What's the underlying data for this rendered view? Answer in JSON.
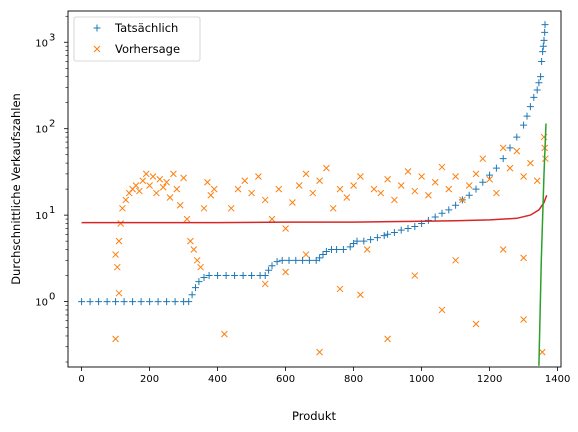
{
  "chart_data": {
    "type": "scatter",
    "xlabel": "Produkt",
    "ylabel": "Durchschnittliche Verkaufszahlen",
    "xlim": [
      -40,
      1410
    ],
    "ylim": [
      0.175,
      2300
    ],
    "yscale": "log",
    "x_ticks": [
      0,
      200,
      400,
      600,
      800,
      1000,
      1200,
      1400
    ],
    "x_tick_labels": [
      "0",
      "200",
      "400",
      "600",
      "800",
      "1000",
      "1200",
      "1400"
    ],
    "y_ticks": [
      1,
      10,
      100,
      1000
    ],
    "y_tick_labels": [
      "10",
      "10",
      "10",
      "10"
    ],
    "y_tick_exponents": [
      "0",
      "1",
      "2",
      "3"
    ],
    "grid": false,
    "legend_position": "top-left",
    "colors": {
      "actual": "#1f77b4",
      "predicted": "#ff7f0e",
      "fit_line": "#d62728",
      "vertical_line": "#2ca02c"
    },
    "series": [
      {
        "name": "Tatsächlich",
        "marker": "+",
        "color": "#1f77b4",
        "points": [
          [
            0,
            1
          ],
          [
            25,
            1
          ],
          [
            50,
            1
          ],
          [
            75,
            1
          ],
          [
            100,
            1
          ],
          [
            125,
            1
          ],
          [
            150,
            1
          ],
          [
            175,
            1
          ],
          [
            200,
            1
          ],
          [
            225,
            1
          ],
          [
            250,
            1
          ],
          [
            275,
            1
          ],
          [
            300,
            1
          ],
          [
            315,
            1
          ],
          [
            325,
            1.2
          ],
          [
            335,
            1.45
          ],
          [
            345,
            1.7
          ],
          [
            360,
            1.9
          ],
          [
            375,
            2
          ],
          [
            400,
            2
          ],
          [
            425,
            2
          ],
          [
            450,
            2
          ],
          [
            475,
            2
          ],
          [
            500,
            2
          ],
          [
            525,
            2
          ],
          [
            540,
            2
          ],
          [
            550,
            2.3
          ],
          [
            560,
            2.6
          ],
          [
            575,
            2.9
          ],
          [
            590,
            3
          ],
          [
            610,
            3
          ],
          [
            630,
            3
          ],
          [
            650,
            3
          ],
          [
            670,
            3
          ],
          [
            690,
            3
          ],
          [
            700,
            3.2
          ],
          [
            710,
            3.5
          ],
          [
            720,
            3.8
          ],
          [
            735,
            4
          ],
          [
            750,
            4
          ],
          [
            770,
            4
          ],
          [
            790,
            4.3
          ],
          [
            800,
            4.7
          ],
          [
            810,
            5
          ],
          [
            830,
            5
          ],
          [
            850,
            5.2
          ],
          [
            870,
            5.5
          ],
          [
            890,
            5.8
          ],
          [
            900,
            6
          ],
          [
            920,
            6.3
          ],
          [
            940,
            6.7
          ],
          [
            960,
            7
          ],
          [
            980,
            7.4
          ],
          [
            1000,
            8
          ],
          [
            1020,
            8.7
          ],
          [
            1040,
            9.5
          ],
          [
            1060,
            10.5
          ],
          [
            1080,
            11.5
          ],
          [
            1100,
            13
          ],
          [
            1120,
            15
          ],
          [
            1140,
            17
          ],
          [
            1160,
            20
          ],
          [
            1180,
            24
          ],
          [
            1200,
            29
          ],
          [
            1220,
            35
          ],
          [
            1240,
            45
          ],
          [
            1260,
            60
          ],
          [
            1280,
            80
          ],
          [
            1300,
            110
          ],
          [
            1310,
            140
          ],
          [
            1320,
            180
          ],
          [
            1330,
            230
          ],
          [
            1340,
            280
          ],
          [
            1345,
            340
          ],
          [
            1350,
            400
          ],
          [
            1353,
            600
          ],
          [
            1356,
            780
          ],
          [
            1358,
            900
          ],
          [
            1360,
            1050
          ],
          [
            1362,
            1300
          ],
          [
            1363,
            1600
          ]
        ]
      },
      {
        "name": "Vorhersage",
        "marker": "x",
        "color": "#ff7f0e",
        "points": [
          [
            100,
            3.5
          ],
          [
            105,
            2.5
          ],
          [
            110,
            5
          ],
          [
            115,
            8
          ],
          [
            120,
            12
          ],
          [
            130,
            15
          ],
          [
            140,
            18
          ],
          [
            150,
            20
          ],
          [
            160,
            22
          ],
          [
            170,
            19
          ],
          [
            180,
            25
          ],
          [
            190,
            30
          ],
          [
            200,
            22
          ],
          [
            210,
            28
          ],
          [
            220,
            18
          ],
          [
            230,
            26
          ],
          [
            240,
            21
          ],
          [
            250,
            24
          ],
          [
            260,
            16
          ],
          [
            270,
            30
          ],
          [
            280,
            20
          ],
          [
            290,
            13
          ],
          [
            300,
            27
          ],
          [
            310,
            9
          ],
          [
            320,
            5
          ],
          [
            330,
            4
          ],
          [
            340,
            3
          ],
          [
            350,
            2.5
          ],
          [
            360,
            12
          ],
          [
            370,
            24
          ],
          [
            380,
            17
          ],
          [
            390,
            20
          ],
          [
            100,
            0.37
          ],
          [
            110,
            1.25
          ],
          [
            420,
            0.42
          ],
          [
            440,
            12
          ],
          [
            460,
            20
          ],
          [
            480,
            25
          ],
          [
            500,
            18
          ],
          [
            520,
            28
          ],
          [
            540,
            15
          ],
          [
            560,
            9
          ],
          [
            580,
            20
          ],
          [
            600,
            7
          ],
          [
            620,
            14
          ],
          [
            640,
            22
          ],
          [
            660,
            30
          ],
          [
            680,
            18
          ],
          [
            700,
            25
          ],
          [
            720,
            35
          ],
          [
            740,
            12
          ],
          [
            760,
            20
          ],
          [
            780,
            16
          ],
          [
            800,
            22
          ],
          [
            820,
            28
          ],
          [
            840,
            4
          ],
          [
            860,
            20
          ],
          [
            880,
            18
          ],
          [
            900,
            26
          ],
          [
            920,
            15
          ],
          [
            940,
            22
          ],
          [
            960,
            32
          ],
          [
            980,
            19
          ],
          [
            1000,
            28
          ],
          [
            1020,
            17
          ],
          [
            1040,
            24
          ],
          [
            1060,
            36
          ],
          [
            1080,
            20
          ],
          [
            1100,
            28
          ],
          [
            1120,
            15
          ],
          [
            1140,
            22
          ],
          [
            1160,
            30
          ],
          [
            1180,
            45
          ],
          [
            1200,
            26
          ],
          [
            1220,
            18
          ],
          [
            1240,
            60
          ],
          [
            1260,
            35
          ],
          [
            1280,
            55
          ],
          [
            1300,
            28
          ],
          [
            1320,
            40
          ],
          [
            1340,
            25
          ],
          [
            1360,
            80
          ],
          [
            1362,
            60
          ],
          [
            1364,
            45
          ],
          [
            540,
            1.6
          ],
          [
            700,
            0.26
          ],
          [
            900,
            0.37
          ],
          [
            1060,
            0.8
          ],
          [
            1160,
            0.55
          ],
          [
            1300,
            0.62
          ],
          [
            1355,
            0.26
          ],
          [
            820,
            1.2
          ],
          [
            760,
            1.4
          ],
          [
            980,
            2
          ],
          [
            1100,
            3
          ],
          [
            1240,
            4
          ],
          [
            1300,
            3.2
          ],
          [
            660,
            3.5
          ],
          [
            600,
            2.2
          ]
        ]
      }
    ],
    "fit_curve": [
      [
        0,
        8.2
      ],
      [
        200,
        8.2
      ],
      [
        400,
        8.2
      ],
      [
        600,
        8.3
      ],
      [
        800,
        8.3
      ],
      [
        1000,
        8.5
      ],
      [
        1100,
        8.6
      ],
      [
        1200,
        8.8
      ],
      [
        1280,
        9.2
      ],
      [
        1320,
        10
      ],
      [
        1345,
        11.5
      ],
      [
        1360,
        14
      ],
      [
        1368,
        17
      ]
    ],
    "vertical_line": [
      [
        1345,
        0.18
      ],
      [
        1352,
        3
      ],
      [
        1360,
        30
      ],
      [
        1366,
        115
      ]
    ]
  }
}
